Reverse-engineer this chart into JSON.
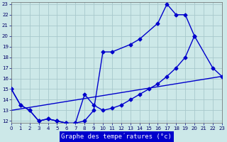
{
  "xlabel": "Graphe des températures (°c)",
  "bg_color": "#cce8e8",
  "grid_color": "#a8c8cc",
  "line_color": "#0000cc",
  "xlim": [
    0,
    23
  ],
  "ylim": [
    11.8,
    23.2
  ],
  "xticks": [
    0,
    1,
    2,
    3,
    4,
    5,
    6,
    7,
    8,
    9,
    10,
    11,
    12,
    13,
    14,
    15,
    16,
    17,
    18,
    19,
    20,
    21,
    22,
    23
  ],
  "yticks": [
    12,
    13,
    14,
    15,
    16,
    17,
    18,
    19,
    20,
    21,
    22,
    23
  ],
  "line1_x": [
    0,
    1,
    2,
    3,
    4,
    5,
    6,
    7,
    8,
    9,
    10,
    11,
    13,
    14,
    16,
    17,
    18,
    19,
    20,
    22,
    23
  ],
  "line1_y": [
    15.0,
    13.5,
    13.0,
    12.0,
    12.2,
    12.0,
    11.8,
    11.8,
    12.0,
    13.0,
    18.5,
    18.5,
    19.2,
    19.7,
    21.2,
    23.0,
    22.0,
    22.0,
    20.0,
    17.0,
    16.2
  ],
  "line2_x": [
    0,
    1,
    2,
    3,
    4,
    5,
    6,
    7,
    8,
    9,
    10,
    11,
    12,
    13,
    14,
    15,
    16,
    17,
    18,
    19,
    20
  ],
  "line2_y": [
    15.0,
    13.5,
    13.0,
    12.0,
    12.2,
    12.0,
    11.8,
    11.8,
    14.5,
    13.5,
    13.0,
    13.2,
    13.5,
    14.0,
    14.5,
    15.0,
    15.5,
    16.2,
    17.0,
    18.0,
    20.0
  ],
  "line3_x": [
    0,
    23
  ],
  "line3_y": [
    13.0,
    16.2
  ]
}
